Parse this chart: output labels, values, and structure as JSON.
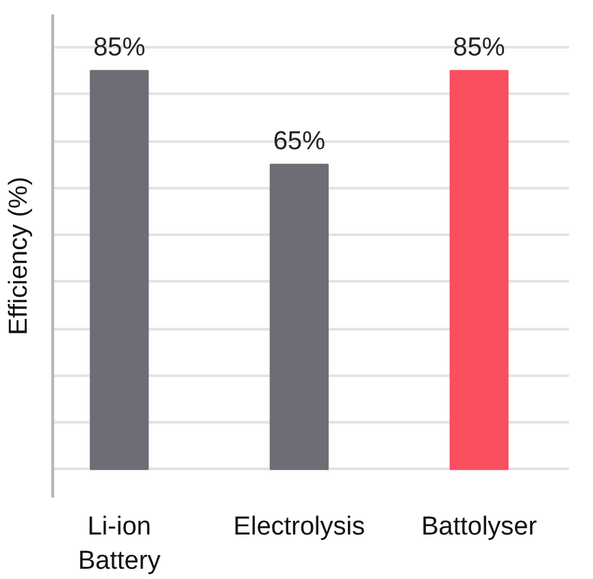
{
  "chart_data": {
    "type": "bar",
    "ylabel": "Efficiency (%)",
    "categories": [
      "Li-ion Battery",
      "Electrolysis",
      "Battolyser"
    ],
    "values": [
      85,
      65,
      85
    ],
    "colors": [
      "#6e6d75",
      "#6e6d75",
      "#f94f5f"
    ],
    "value_labels": [
      "85%",
      "65%",
      "85%"
    ],
    "ylim": [
      -6,
      97
    ],
    "yticks": [
      {
        "value": 0,
        "label": null
      },
      {
        "value": 10,
        "label": null
      },
      {
        "value": 20,
        "label": null
      },
      {
        "value": 30,
        "label": null
      },
      {
        "value": 40,
        "label": null
      },
      {
        "value": 50,
        "label": null
      },
      {
        "value": 60,
        "label": null
      },
      {
        "value": 70,
        "label": null
      },
      {
        "value": 80,
        "label": null
      },
      {
        "value": 90,
        "label": null
      }
    ],
    "grid": "y",
    "tick_labels": "x"
  }
}
